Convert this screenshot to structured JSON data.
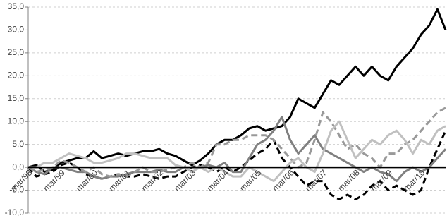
{
  "chart_data": {
    "type": "line",
    "categories": [
      "mar/98",
      null,
      null,
      null,
      "mar/99",
      null,
      null,
      null,
      "mar/00",
      null,
      null,
      null,
      "mar/01",
      null,
      null,
      null,
      "mar/02",
      null,
      null,
      null,
      "mar/03",
      null,
      null,
      null,
      "mar/04",
      null,
      null,
      null,
      "mar/05",
      null,
      null,
      null,
      "mar/06",
      null,
      null,
      null,
      "mar/07",
      null,
      null,
      null,
      "mar/08",
      null,
      null,
      null,
      "mar/09",
      null,
      null,
      null,
      "mar/10",
      null,
      null,
      null
    ],
    "series": [
      {
        "color": "#000000",
        "dashed": false,
        "values": [
          0,
          0.5,
          -1,
          -0.5,
          1,
          1.5,
          2,
          2,
          3.5,
          2,
          2.5,
          3,
          2.5,
          3,
          3.5,
          3.5,
          4,
          3,
          2.5,
          1.5,
          0.5,
          1.5,
          3,
          5,
          6,
          6,
          7,
          8.5,
          9,
          8,
          8.5,
          9,
          11,
          15,
          14,
          13,
          16,
          19,
          18,
          20,
          22,
          20,
          22,
          20,
          19,
          22,
          24,
          26,
          29,
          31,
          34.5,
          30
        ]
      },
      {
        "color": "#000000",
        "dashed": true,
        "values": [
          0,
          -2,
          -1.5,
          -1,
          0.5,
          1,
          0,
          -1.5,
          -2,
          -2.5,
          -2,
          -1.5,
          -2,
          -2,
          -1.5,
          -2,
          -2.5,
          -2,
          -2,
          -1,
          0,
          0.5,
          0,
          -1,
          0,
          -1,
          0,
          1.5,
          3,
          4,
          6,
          2,
          0,
          -2,
          -4,
          -3,
          -3,
          -6,
          -7,
          -6,
          -7,
          -6,
          -4,
          -3,
          -5,
          -4,
          -5,
          -6,
          -5,
          0,
          4,
          8
        ]
      },
      {
        "color": "#808080",
        "dashed": false,
        "values": [
          0,
          -1,
          -1.5,
          0,
          0,
          -0.5,
          -1,
          -1,
          -2,
          -2.5,
          -2,
          -2,
          -1.5,
          -1,
          -1,
          -1,
          -0.5,
          -1,
          -1,
          0,
          0,
          0,
          0.5,
          0,
          1,
          -1,
          -1,
          2,
          5,
          6,
          8,
          11,
          6,
          3,
          5,
          7,
          4,
          3,
          2,
          1,
          0,
          -1,
          0,
          -1,
          -1.5,
          -3,
          -1,
          0,
          -1,
          0,
          2,
          4
        ]
      },
      {
        "color": "#999999",
        "dashed": true,
        "values": [
          0,
          -1,
          -0.5,
          0,
          1.5,
          1,
          0,
          -1,
          0,
          -1.5,
          -2,
          -1.5,
          -2,
          -1,
          0,
          -1,
          -1,
          -0.5,
          0,
          0,
          1,
          0,
          1,
          5,
          5,
          6,
          6,
          7,
          7,
          7,
          6,
          4,
          2,
          0,
          1,
          6,
          12,
          10,
          7,
          4,
          5,
          3,
          2,
          0,
          3,
          3,
          5,
          6,
          8,
          10,
          12,
          13
        ]
      },
      {
        "color": "#c0c0c0",
        "dashed": false,
        "values": [
          0,
          0,
          1,
          1,
          2,
          3,
          2.5,
          2,
          1,
          1,
          1.5,
          2,
          3,
          3,
          2.5,
          2,
          2,
          2,
          0.5,
          0,
          -1,
          0,
          -1,
          0,
          -1,
          -2,
          -2,
          0,
          -1,
          -2,
          -3,
          -1,
          1,
          2,
          0,
          -1,
          3,
          8,
          10,
          6,
          2,
          4,
          6,
          5,
          7,
          8,
          6,
          3,
          6,
          5,
          8,
          9
        ]
      }
    ],
    "ylim": [
      -10,
      35
    ],
    "yticks": [
      {
        "value": -10,
        "label": "-10,0"
      },
      {
        "value": -5,
        "label": "-5,0"
      },
      {
        "value": 0,
        "label": "0,0"
      },
      {
        "value": 5,
        "label": "5,0"
      },
      {
        "value": 10,
        "label": "10,0"
      },
      {
        "value": 15,
        "label": "15,0"
      },
      {
        "value": 20,
        "label": "20,0"
      },
      {
        "value": 25,
        "label": "25,0"
      },
      {
        "value": 30,
        "label": "30,0"
      },
      {
        "value": 35,
        "label": "35,0"
      }
    ],
    "grid": true
  }
}
